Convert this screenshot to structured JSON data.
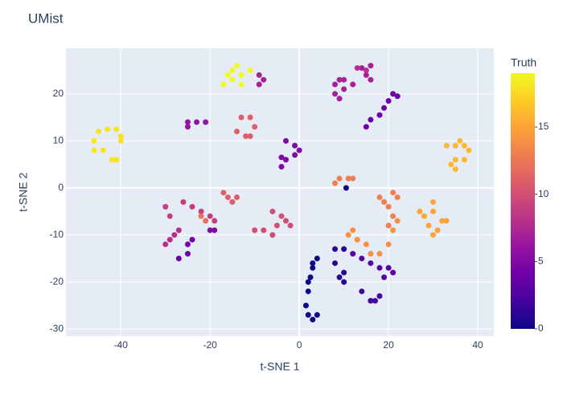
{
  "chart_data": {
    "type": "scatter",
    "title": "UMist",
    "x_label": "t-SNE 1",
    "y_label": "t-SNE 2",
    "colorbar_title": "Truth",
    "colorscale": [
      "#0d0887",
      "#46039f",
      "#7201a8",
      "#9c179e",
      "#bd3786",
      "#d8576b",
      "#ed7953",
      "#fb9f3a",
      "#fdca26",
      "#f0f921"
    ],
    "clim": [
      0,
      19
    ],
    "cticks": [
      0,
      5,
      10,
      15
    ],
    "xlim": [
      -52.3,
      43.6
    ],
    "ylim": [
      -31.5,
      29.7
    ],
    "xticks": [
      -40,
      -20,
      0,
      20,
      40
    ],
    "yticks": [
      -30,
      -20,
      -10,
      0,
      10,
      20
    ],
    "grid": true,
    "x": [
      4,
      3,
      2.5,
      2,
      1.5,
      2,
      3,
      4,
      2,
      3,
      10.5,
      8,
      10,
      8,
      10,
      10,
      9,
      14,
      16,
      18,
      17,
      12,
      14,
      16,
      18,
      20,
      21,
      19,
      -25,
      -24,
      -25,
      -27,
      -20,
      -19,
      15,
      16,
      18,
      19,
      20,
      21,
      22,
      -3,
      -1,
      0,
      -1,
      -3,
      -4,
      -4,
      -25,
      -23,
      -21,
      -25,
      -9,
      -8,
      -9,
      8,
      9,
      10,
      8,
      9,
      10,
      12,
      14,
      16,
      15,
      16,
      -30,
      -28,
      -27,
      -29,
      13,
      15,
      -30,
      -29,
      -26,
      -24,
      -22,
      -20,
      -19,
      -10,
      -8,
      -6,
      -5,
      -4,
      -6,
      -3,
      -2,
      -17,
      -16,
      -14,
      -15,
      -13,
      -11,
      -10,
      -11,
      -12,
      -14,
      -22,
      -21,
      18,
      19,
      20,
      21,
      22,
      21,
      20,
      8,
      9,
      11,
      12,
      11,
      12,
      13,
      15,
      16,
      18,
      20,
      21,
      22,
      27,
      28,
      29,
      30,
      31,
      30,
      30,
      32,
      33,
      33,
      35,
      36,
      37,
      38,
      37,
      35,
      34,
      35,
      -46,
      -45,
      -43,
      -41,
      -40,
      -40,
      -44,
      -42,
      -41,
      -46,
      -17,
      -16,
      -15,
      -14,
      -13,
      -13,
      -11,
      -15
    ],
    "y": [
      -15,
      -17,
      -19,
      -22,
      -25,
      -27,
      -28,
      -27,
      -20,
      -16,
      0,
      -13,
      -13,
      -16,
      -18,
      -20,
      -19,
      -22,
      -24,
      -23,
      -24,
      -14,
      -15,
      -16,
      -17,
      -17,
      -18,
      -19,
      -12,
      -11,
      -14,
      -15,
      -9,
      -9,
      13,
      14.5,
      15.5,
      17,
      18.5,
      20,
      19.5,
      10,
      9,
      8,
      7,
      6,
      4.5,
      6.5,
      14,
      14,
      14,
      13,
      24,
      23,
      22,
      22,
      23,
      23,
      20,
      19,
      21,
      22,
      25.5,
      26,
      24,
      23,
      -12,
      -10,
      -9,
      -11,
      25.5,
      25,
      -4,
      -6,
      -3,
      -4,
      -5,
      -6,
      -7,
      -9,
      -9,
      -10,
      -8,
      -6,
      -5,
      -7,
      -8,
      -1,
      -2,
      -2,
      -3,
      15,
      15,
      13,
      11,
      11,
      12,
      -6,
      -7,
      -2,
      -3,
      -4,
      -1,
      -2,
      -6,
      -8,
      1,
      2,
      2,
      2,
      -10,
      -9,
      -11,
      -12,
      -14,
      -14,
      -12,
      -9,
      -7,
      -5,
      -6,
      -8,
      -10,
      -9,
      -3,
      -5,
      -7,
      -7,
      9,
      9,
      10,
      9,
      8,
      6,
      6,
      5,
      4,
      10,
      12,
      12.5,
      12.5,
      11,
      10,
      8,
      6,
      6,
      8,
      22,
      24,
      25,
      26,
      24,
      22,
      25,
      23
    ],
    "color": [
      0,
      0,
      0,
      0,
      0,
      0,
      0,
      0,
      0,
      0,
      0,
      1,
      1,
      1,
      1,
      1,
      1,
      2,
      2,
      2,
      2,
      3,
      3,
      3,
      3,
      3,
      3,
      3,
      4,
      4,
      4,
      4,
      5,
      5,
      4,
      4,
      4,
      4,
      4,
      4,
      4,
      5,
      5,
      5,
      5,
      5,
      5,
      5,
      6,
      6,
      6,
      6,
      7,
      7,
      7,
      7,
      7,
      7,
      7,
      7,
      7,
      7,
      7,
      7,
      7,
      7,
      8,
      8,
      8,
      8,
      8,
      8,
      9,
      9,
      9,
      9,
      9,
      9,
      9,
      10,
      10,
      10,
      10,
      10,
      10,
      10,
      10,
      11,
      11,
      11,
      11,
      11,
      11,
      11,
      11,
      11,
      11,
      12,
      12,
      13,
      13,
      13,
      13,
      13,
      13,
      13,
      13,
      13,
      13,
      13,
      14,
      14,
      14,
      14,
      14,
      14,
      14,
      14,
      14,
      15,
      15,
      15,
      15,
      15,
      15,
      15,
      15,
      15,
      16,
      16,
      16,
      16,
      16,
      16,
      16,
      16,
      16,
      18,
      18,
      18,
      18,
      18,
      18,
      18,
      18,
      18,
      18,
      19,
      19,
      19,
      19,
      19,
      19,
      19,
      19
    ]
  }
}
